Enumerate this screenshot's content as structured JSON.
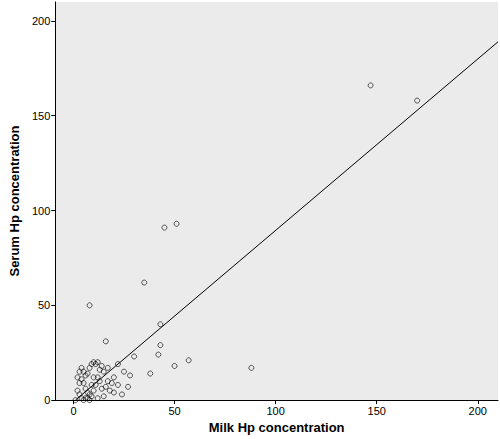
{
  "chart_data": {
    "type": "scatter",
    "x_label": "Milk Hp concentration",
    "y_label": "Serum Hp concentration",
    "xlim": [
      -9,
      210
    ],
    "xticks": [
      0,
      50,
      100,
      150,
      200
    ],
    "ylim": [
      0,
      210
    ],
    "yticks": [
      0,
      50,
      100,
      150,
      200
    ],
    "grid": false,
    "series": [
      {
        "type": "scatter",
        "color": "#000000",
        "marker": "circle",
        "x": [
          147,
          170,
          45,
          51,
          35,
          8,
          43,
          88,
          57,
          50,
          42,
          43,
          16,
          38,
          30,
          28,
          27,
          25,
          22,
          20,
          19,
          18,
          17,
          15,
          14,
          12,
          11,
          10,
          9,
          8,
          7,
          6,
          5,
          4,
          3,
          4,
          5,
          6,
          7,
          8,
          9,
          10,
          11,
          12,
          13,
          14,
          15,
          16,
          17,
          13,
          2,
          3,
          4,
          5,
          6,
          7,
          8,
          9,
          10,
          12,
          20,
          22,
          24,
          1,
          3,
          2
        ],
        "values": [
          166,
          158,
          91,
          93,
          62,
          50,
          40,
          17,
          21,
          18,
          24,
          29,
          31,
          14,
          23,
          13,
          7,
          15,
          19,
          12,
          9,
          5,
          10,
          15,
          18,
          20,
          19,
          20,
          19,
          17,
          14,
          13,
          15,
          17,
          15,
          11,
          9,
          6,
          4,
          3,
          2,
          5,
          8,
          12,
          10,
          6,
          2,
          7,
          17,
          16,
          5,
          3,
          1,
          0,
          1,
          1,
          0,
          8,
          12,
          1,
          4,
          8,
          3,
          0,
          9,
          12
        ]
      },
      {
        "type": "line",
        "color": "#000000",
        "line_style": "solid",
        "x": [
          1,
          210
        ],
        "values": [
          0,
          189
        ]
      }
    ]
  }
}
